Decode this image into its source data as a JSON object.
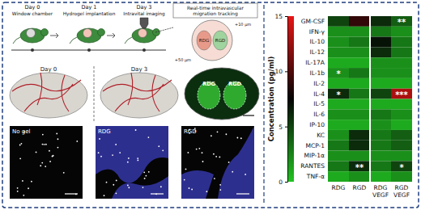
{
  "chart_data": {
    "type": "heatmap",
    "rows": [
      "GM-CSF",
      "IFN-γ",
      "IL-10",
      "IL-12",
      "IL-17A",
      "IL-1b",
      "IL-2",
      "IL-4",
      "IL-5",
      "IL-6",
      "IP-10",
      "KC",
      "MCP-1",
      "MIP-1α",
      "RANTES",
      "TNF-α"
    ],
    "categories": [
      "RDG",
      "RGD",
      "RDG\nVEGF",
      "RGD\nVEGF"
    ],
    "values": [
      [
        5,
        9,
        6,
        4
      ],
      [
        2,
        2,
        3,
        2
      ],
      [
        2,
        3,
        7,
        3
      ],
      [
        2,
        2,
        6,
        3
      ],
      [
        1,
        1,
        2,
        2
      ],
      [
        2,
        3,
        2,
        2
      ],
      [
        1,
        1,
        1,
        1
      ],
      [
        6,
        3,
        5,
        13
      ],
      [
        1,
        1,
        1,
        1
      ],
      [
        2,
        2,
        3,
        2
      ],
      [
        1,
        1,
        2,
        1
      ],
      [
        2,
        6,
        3,
        4
      ],
      [
        3,
        6,
        3,
        4
      ],
      [
        2,
        2,
        2,
        2
      ],
      [
        3,
        6,
        3,
        5
      ],
      [
        1,
        2,
        1,
        2
      ]
    ],
    "significance": [
      [
        null,
        null,
        null,
        "**"
      ],
      [
        null,
        null,
        null,
        null
      ],
      [
        null,
        null,
        null,
        null
      ],
      [
        null,
        null,
        null,
        null
      ],
      [
        null,
        null,
        null,
        null
      ],
      [
        "*",
        null,
        null,
        null
      ],
      [
        null,
        null,
        null,
        null
      ],
      [
        "*",
        null,
        null,
        "***"
      ],
      [
        null,
        null,
        null,
        null
      ],
      [
        null,
        null,
        null,
        null
      ],
      [
        null,
        null,
        null,
        null
      ],
      [
        null,
        null,
        null,
        null
      ],
      [
        null,
        null,
        null,
        null
      ],
      [
        null,
        null,
        null,
        null
      ],
      [
        null,
        "**",
        null,
        "*"
      ],
      [
        null,
        null,
        null,
        null
      ]
    ],
    "colorbar": {
      "label": "Concentration (pg/ml)",
      "range": [
        0,
        15
      ],
      "ticks": [
        0,
        5,
        10,
        15
      ]
    }
  },
  "figure": {
    "timeline": [
      {
        "day": "Day 0",
        "label": "Window chamber"
      },
      {
        "day": "Day 1",
        "label": "Hydrogel implantation"
      },
      {
        "day": "Day 3",
        "label": "Intravital imaging"
      }
    ],
    "diagram": {
      "title_lines": [
        "Real-time intravascular",
        "migration tracking"
      ],
      "gels": [
        "RDG",
        "RGD"
      ],
      "depths": [
        "+10 μm",
        "+50 μm"
      ]
    },
    "photos": {
      "days": [
        "Day 0",
        "Day 3"
      ],
      "gels": [
        "RDG",
        "RGD"
      ]
    },
    "micrographs": [
      "No gel",
      "RDG",
      "RGD"
    ]
  }
}
